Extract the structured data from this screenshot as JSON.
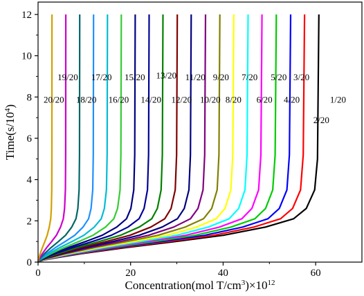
{
  "chart_data": {
    "type": "line",
    "title": "",
    "xlabel": {
      "text": "Concentration(mol T/cm",
      "sup": "3",
      "after": ")×10",
      "exp": "12"
    },
    "ylabel": {
      "text": "Time(s/10",
      "sup": "4",
      "after": ")"
    },
    "xlim": [
      0,
      70
    ],
    "ylim": [
      0,
      12.6
    ],
    "xticks": [
      0,
      20,
      40,
      60
    ],
    "yticks": [
      0,
      2,
      4,
      6,
      8,
      10,
      12
    ],
    "grid": false,
    "legend": "none",
    "y": [
      0,
      0.1,
      0.2,
      0.4,
      0.7,
      1.0,
      1.3,
      1.7,
      2.1,
      2.6,
      3.5,
      5.2,
      12.0
    ],
    "y_for_first_curve": [
      0,
      0.1,
      0.2,
      0.4,
      0.7,
      1.0,
      1.3,
      1.7,
      2.1,
      2.6,
      3.5,
      5.0,
      12.0
    ],
    "shape_fractions": [
      0,
      0.02,
      0.06,
      0.15,
      0.31,
      0.49,
      0.66,
      0.81,
      0.91,
      0.955,
      0.985,
      0.995,
      1.0
    ],
    "series": [
      {
        "label": "1/20",
        "xmax": 60.7,
        "color": "#000000"
      },
      {
        "label": "2/20",
        "xmax": 57.6,
        "color": "#ff0000"
      },
      {
        "label": "3/20",
        "xmax": 54.6,
        "color": "#0000ff"
      },
      {
        "label": "4/20",
        "xmax": 51.5,
        "color": "#00cc00"
      },
      {
        "label": "5/20",
        "xmax": 48.4,
        "color": "#ff00ff"
      },
      {
        "label": "6/20",
        "xmax": 45.4,
        "color": "#00ffff"
      },
      {
        "label": "7/20",
        "xmax": 42.3,
        "color": "#ffff00"
      },
      {
        "label": "8/20",
        "xmax": 39.3,
        "color": "#808000"
      },
      {
        "label": "9/20",
        "xmax": 36.2,
        "color": "#800080"
      },
      {
        "label": "10/20",
        "xmax": 33.1,
        "color": "#000080"
      },
      {
        "label": "11/20",
        "xmax": 30.1,
        "color": "#800000"
      },
      {
        "label": "12/20",
        "xmax": 27.0,
        "color": "#008000"
      },
      {
        "label": "13/20",
        "xmax": 24.0,
        "color": "#000099"
      },
      {
        "label": "14/20",
        "xmax": 21.0,
        "color": "#000080"
      },
      {
        "label": "15/20",
        "xmax": 18.0,
        "color": "#33cc33"
      },
      {
        "label": "16/20",
        "xmax": 15.0,
        "color": "#00bcd4"
      },
      {
        "label": "17/20",
        "xmax": 12.0,
        "color": "#1e90ff"
      },
      {
        "label": "18/20",
        "xmax": 9.0,
        "color": "#006666"
      },
      {
        "label": "19/20",
        "xmax": 6.0,
        "color": "#cc00cc"
      },
      {
        "label": "20/20",
        "xmax": 3.0,
        "color": "#d2a000"
      }
    ],
    "annotations": [
      {
        "text": "19/20",
        "x": 4.2,
        "y": 8.98
      },
      {
        "text": "17/20",
        "x": 11.5,
        "y": 8.98
      },
      {
        "text": "15/20",
        "x": 18.7,
        "y": 8.98
      },
      {
        "text": "13/20",
        "x": 25.5,
        "y": 9.06
      },
      {
        "text": "11/20",
        "x": 31.8,
        "y": 8.98
      },
      {
        "text": "9/20",
        "x": 37.8,
        "y": 8.98
      },
      {
        "text": "7/20",
        "x": 44.0,
        "y": 8.98
      },
      {
        "text": "5/20",
        "x": 50.3,
        "y": 8.98
      },
      {
        "text": "3/20",
        "x": 55.2,
        "y": 8.98
      },
      {
        "text": "20/20",
        "x": 1.2,
        "y": 7.9
      },
      {
        "text": "18/20",
        "x": 8.2,
        "y": 7.9
      },
      {
        "text": "16/20",
        "x": 15.2,
        "y": 7.9
      },
      {
        "text": "14/20",
        "x": 22.2,
        "y": 7.9
      },
      {
        "text": "12/20",
        "x": 28.8,
        "y": 7.9
      },
      {
        "text": "10/20",
        "x": 35.0,
        "y": 7.9
      },
      {
        "text": "8/20",
        "x": 40.5,
        "y": 7.9
      },
      {
        "text": "6/20",
        "x": 47.2,
        "y": 7.9
      },
      {
        "text": "4/20",
        "x": 53.1,
        "y": 7.9
      },
      {
        "text": "1/20",
        "x": 63.1,
        "y": 7.9
      },
      {
        "text": "2/20",
        "x": 59.5,
        "y": 6.9
      }
    ]
  }
}
